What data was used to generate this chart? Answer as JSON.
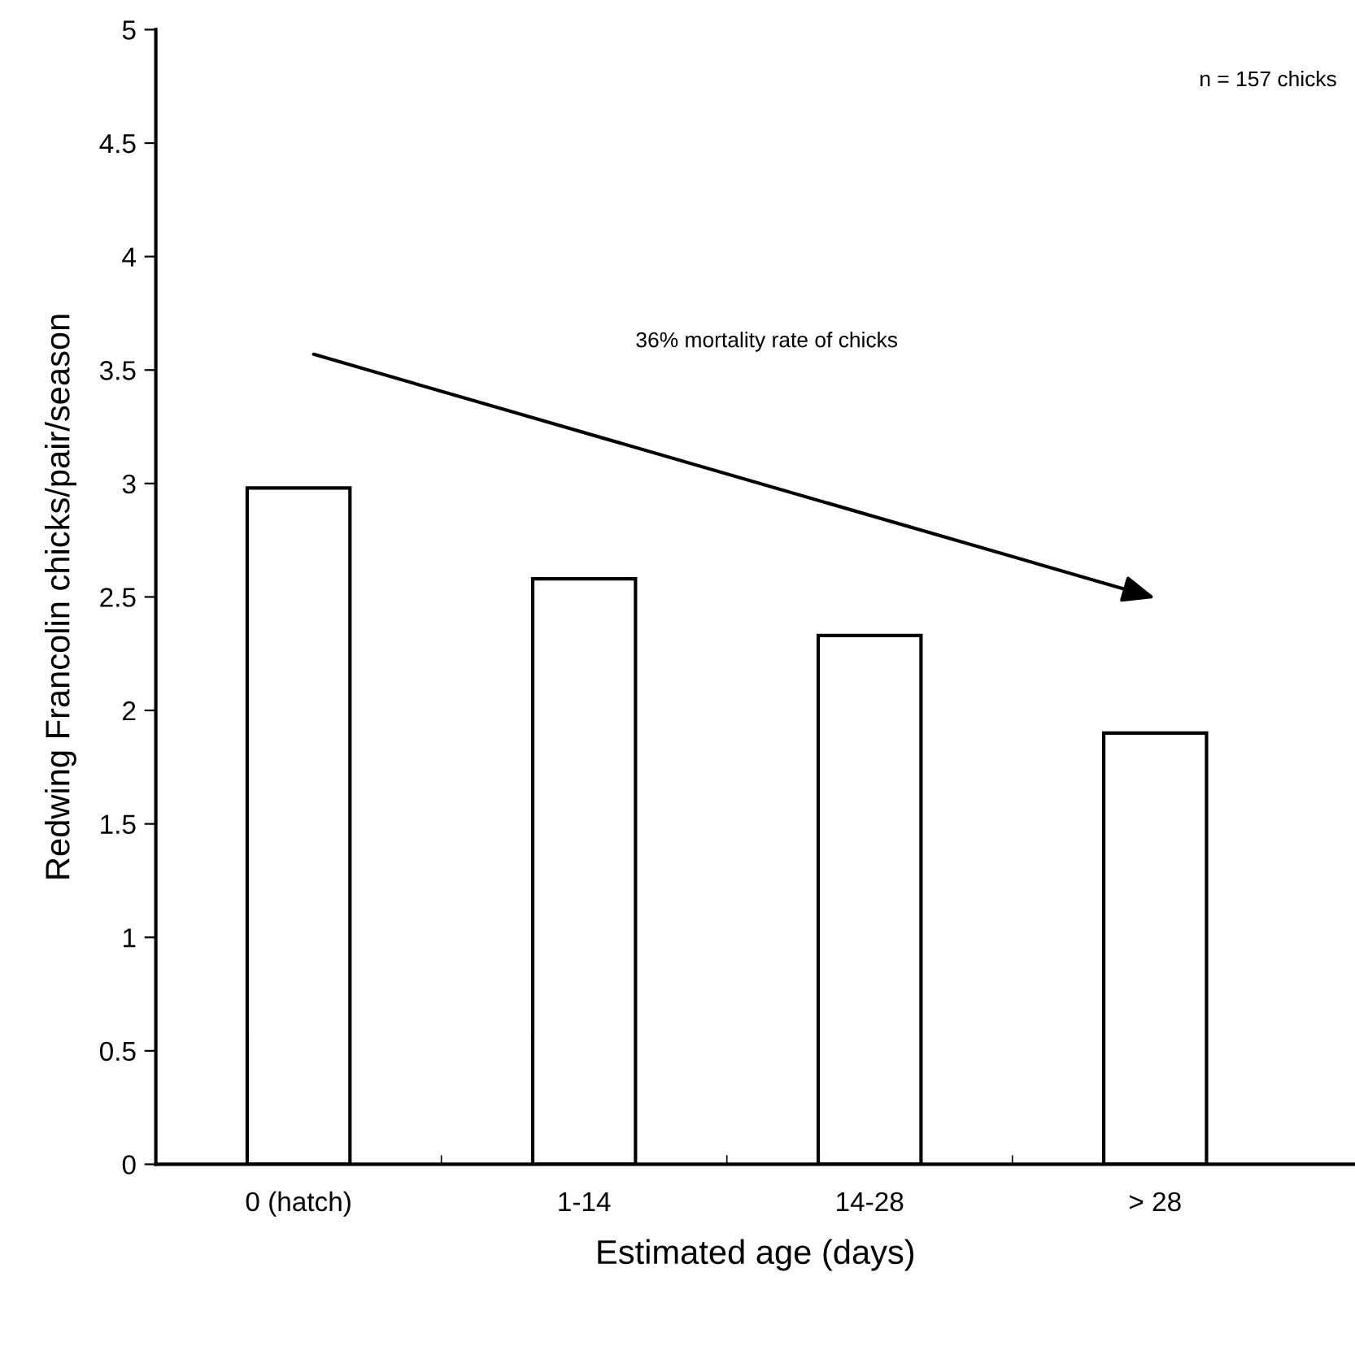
{
  "chart_data": {
    "type": "bar",
    "xlabel": "Estimated age (days)",
    "ylabel": "Redwing Francolin chicks/pair/season",
    "categories": [
      "0 (hatch)",
      "1-14",
      "14-28",
      "> 28"
    ],
    "values": [
      2.98,
      2.58,
      2.33,
      1.9
    ],
    "color": "#ffffff",
    "ylim": [
      0,
      5
    ],
    "yticks": [
      0,
      0.5,
      1,
      1.5,
      2,
      2.5,
      3,
      3.5,
      4,
      4.5,
      5
    ],
    "grid": false,
    "legend": false,
    "annotations": [
      "36% mortality rate of chicks",
      "n = 157 chicks"
    ]
  }
}
